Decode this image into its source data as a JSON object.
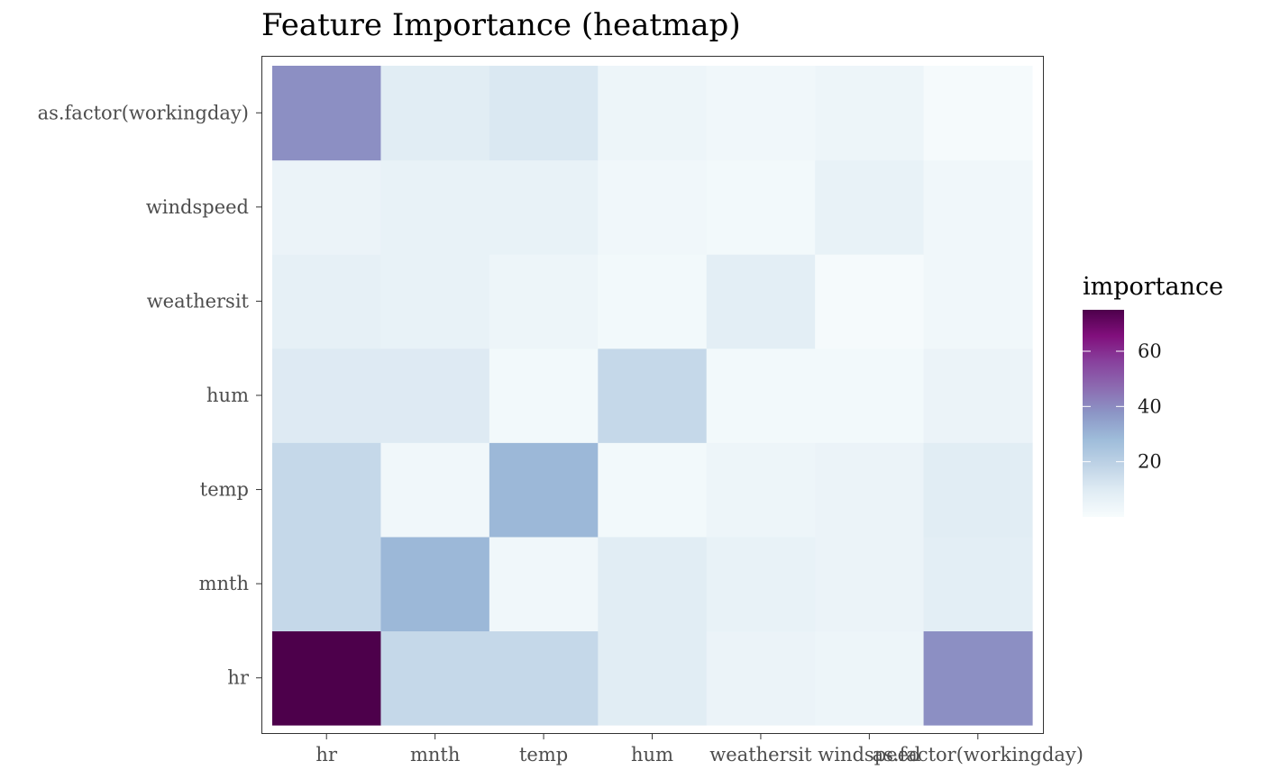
{
  "chart_data": {
    "type": "heatmap",
    "title": "Feature Importance (heatmap)",
    "x_categories": [
      "hr",
      "mnth",
      "temp",
      "hum",
      "weathersit",
      "windspeed",
      "as.factor(workingday)"
    ],
    "y_categories": [
      "hr",
      "mnth",
      "temp",
      "hum",
      "weathersit",
      "windspeed",
      "as.factor(workingday)"
    ],
    "values": [
      [
        75,
        17,
        17,
        9,
        5,
        4,
        39
      ],
      [
        17,
        29,
        3,
        9,
        6,
        5,
        8
      ],
      [
        17,
        3,
        29,
        2,
        4,
        5,
        9
      ],
      [
        10,
        10,
        2,
        17,
        2,
        2,
        5
      ],
      [
        7,
        6,
        4,
        2,
        8,
        1,
        3
      ],
      [
        5,
        6,
        6,
        3,
        2,
        6,
        3
      ],
      [
        39,
        9,
        11,
        4,
        3,
        4,
        1
      ]
    ],
    "legend": {
      "title": "importance",
      "ticks": [
        20,
        40,
        60
      ],
      "range": [
        0,
        75
      ],
      "colors": [
        "#f7fcfd",
        "#e0ecf4",
        "#bfd3e6",
        "#9ebcda",
        "#8c96c6",
        "#8c6bb1",
        "#88419d",
        "#810f7c",
        "#4d004b"
      ]
    },
    "xlabel": "",
    "ylabel": "",
    "grid": false
  }
}
